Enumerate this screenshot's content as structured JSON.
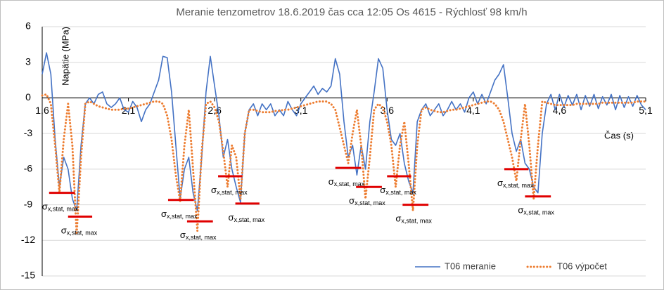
{
  "chart_data": {
    "type": "line",
    "title": "Meranie tenzometrov  18.6.2019 čas cca 12:05 Os 4615 - Rýchlosť 98 km/h",
    "y_label": "Napätie (MPa)",
    "x_label": "Čas (s)",
    "xlim": [
      1.6,
      5.1
    ],
    "ylim": [
      -15,
      6
    ],
    "xticks": [
      {
        "value": 1.6,
        "label": "1,6"
      },
      {
        "value": 2.1,
        "label": "2,1"
      },
      {
        "value": 2.6,
        "label": "2,6"
      },
      {
        "value": 3.1,
        "label": "3,1"
      },
      {
        "value": 3.6,
        "label": "3,6"
      },
      {
        "value": 4.1,
        "label": "4,1"
      },
      {
        "value": 4.6,
        "label": "4,6"
      },
      {
        "value": 5.1,
        "label": "5,1"
      }
    ],
    "yticks": [
      -15,
      -12,
      -9,
      -6,
      -3,
      0,
      3,
      6
    ],
    "grid": true,
    "legend": "bottom-right",
    "x": [
      1.6,
      1.625,
      1.65,
      1.675,
      1.7,
      1.725,
      1.75,
      1.775,
      1.8,
      1.825,
      1.85,
      1.875,
      1.9,
      1.925,
      1.95,
      1.975,
      2.0,
      2.025,
      2.05,
      2.075,
      2.1,
      2.125,
      2.15,
      2.175,
      2.2,
      2.225,
      2.25,
      2.275,
      2.3,
      2.325,
      2.35,
      2.375,
      2.4,
      2.425,
      2.45,
      2.475,
      2.5,
      2.525,
      2.55,
      2.575,
      2.6,
      2.625,
      2.65,
      2.675,
      2.7,
      2.725,
      2.75,
      2.775,
      2.8,
      2.825,
      2.85,
      2.875,
      2.9,
      2.925,
      2.95,
      2.975,
      3.0,
      3.025,
      3.05,
      3.075,
      3.1,
      3.125,
      3.15,
      3.175,
      3.2,
      3.225,
      3.25,
      3.275,
      3.3,
      3.325,
      3.35,
      3.375,
      3.4,
      3.425,
      3.45,
      3.475,
      3.5,
      3.525,
      3.55,
      3.575,
      3.6,
      3.625,
      3.65,
      3.675,
      3.7,
      3.725,
      3.75,
      3.775,
      3.8,
      3.825,
      3.85,
      3.875,
      3.9,
      3.925,
      3.95,
      3.975,
      4.0,
      4.025,
      4.05,
      4.075,
      4.1,
      4.125,
      4.15,
      4.175,
      4.2,
      4.225,
      4.25,
      4.275,
      4.3,
      4.325,
      4.35,
      4.375,
      4.4,
      4.425,
      4.45,
      4.475,
      4.5,
      4.525,
      4.55,
      4.575,
      4.6,
      4.625,
      4.65,
      4.675,
      4.7,
      4.725,
      4.75,
      4.775,
      4.8,
      4.825,
      4.85,
      4.875,
      4.9,
      4.925,
      4.95,
      4.975,
      5.0,
      5.025,
      5.05,
      5.075,
      5.1
    ],
    "series": [
      {
        "name": "T06 meranie",
        "color": "#4472c4",
        "style": "solid",
        "values": [
          2.0,
          3.8,
          2.0,
          -3.5,
          -7.5,
          -5.0,
          -6.0,
          -8.5,
          -9.5,
          -4.0,
          -0.5,
          0.0,
          -0.5,
          0.3,
          0.5,
          -0.5,
          -0.8,
          -0.5,
          0.0,
          -1.0,
          -1.2,
          -0.3,
          -0.8,
          -2.0,
          -1.0,
          -0.5,
          0.5,
          1.5,
          3.5,
          3.4,
          0.5,
          -4.0,
          -8.5,
          -6.0,
          -5.0,
          -8.0,
          -9.5,
          -5.0,
          0.5,
          3.5,
          1.0,
          -1.5,
          -5.0,
          -3.5,
          -6.0,
          -7.5,
          -8.8,
          -3.0,
          -1.0,
          -0.5,
          -1.5,
          -0.5,
          -1.0,
          -0.5,
          -1.5,
          -1.0,
          -1.5,
          -0.3,
          -1.0,
          -1.5,
          -0.5,
          0.0,
          0.5,
          1.0,
          0.3,
          0.8,
          0.5,
          1.0,
          3.3,
          2.0,
          -2.0,
          -5.0,
          -4.0,
          -6.5,
          -4.0,
          -6.0,
          -2.0,
          0.5,
          3.3,
          2.5,
          -1.0,
          -3.5,
          -4.0,
          -3.0,
          -5.5,
          -7.0,
          -8.0,
          -2.0,
          -1.0,
          -0.5,
          -1.5,
          -1.0,
          -0.5,
          -1.5,
          -1.0,
          -0.3,
          -1.0,
          -0.5,
          -1.2,
          0.0,
          0.5,
          -0.5,
          0.3,
          -0.5,
          0.5,
          1.5,
          2.0,
          2.8,
          0.0,
          -3.0,
          -4.5,
          -3.5,
          -5.5,
          -6.0,
          -7.5,
          -8.0,
          -3.0,
          -0.5,
          0.3,
          -1.0,
          0.3,
          -0.8,
          0.2,
          -0.6,
          0.3,
          -1.0,
          0.2,
          -0.7,
          0.3,
          -0.9,
          0.1,
          -0.6,
          0.3,
          -1.0,
          0.2,
          -0.8,
          0.1,
          -0.7,
          0.2,
          -0.6,
          -1.0
        ]
      },
      {
        "name": "T06 výpočet",
        "color": "#ed7d31",
        "style": "dotted",
        "values": [
          0.2,
          0.3,
          -0.5,
          -4.0,
          -8.0,
          -3.5,
          -0.5,
          -4.0,
          -11.5,
          -5.0,
          -0.5,
          -0.3,
          -0.5,
          -0.7,
          -0.8,
          -0.9,
          -1.0,
          -1.0,
          -1.0,
          -0.9,
          -0.9,
          -0.8,
          -0.7,
          -0.6,
          -0.5,
          -0.4,
          -0.3,
          -0.3,
          -0.5,
          -1.5,
          -3.5,
          -6.5,
          -8.7,
          -4.0,
          -1.0,
          -6.0,
          -11.2,
          -4.5,
          -0.5,
          -0.3,
          -0.8,
          -2.0,
          -4.5,
          -7.5,
          -4.0,
          -5.0,
          -8.5,
          -3.0,
          -1.0,
          -1.0,
          -1.1,
          -1.2,
          -1.2,
          -1.2,
          -1.1,
          -1.1,
          -1.0,
          -1.0,
          -0.9,
          -0.8,
          -0.7,
          -0.6,
          -0.5,
          -0.4,
          -0.3,
          -0.3,
          -0.3,
          -0.5,
          -1.0,
          -2.5,
          -4.0,
          -5.5,
          -3.0,
          -1.0,
          -4.0,
          -8.5,
          -5.0,
          -1.0,
          -0.5,
          -0.8,
          -2.0,
          -4.0,
          -7.5,
          -4.0,
          -2.0,
          -5.5,
          -9.5,
          -4.0,
          -1.0,
          -0.8,
          -1.0,
          -1.1,
          -1.2,
          -1.2,
          -1.1,
          -1.0,
          -1.0,
          -0.9,
          -0.8,
          -0.7,
          -0.6,
          -0.5,
          -0.4,
          -0.3,
          -0.3,
          -0.5,
          -1.0,
          -2.0,
          -3.5,
          -5.0,
          -7.0,
          -3.5,
          -0.5,
          -4.0,
          -8.5,
          -4.0,
          -0.3,
          -0.4,
          -0.5,
          -0.6,
          -0.6,
          -0.6,
          -0.6,
          -0.6,
          -0.5,
          -0.5,
          -0.5,
          -0.5,
          -0.5,
          -0.5,
          -0.4,
          -0.4,
          -0.4,
          -0.4,
          -0.4,
          -0.4,
          -0.4,
          -0.4,
          -0.3,
          -0.3,
          -0.3
        ]
      }
    ],
    "reference_symbol": "σ",
    "reference_subscript": "x,stat, max",
    "reference_color": "#e00000",
    "reference_levels": [
      {
        "x": [
          1.64,
          1.79
        ],
        "y": -8.0
      },
      {
        "x": [
          1.75,
          1.89
        ],
        "y": -10.0
      },
      {
        "x": [
          2.33,
          2.48
        ],
        "y": -8.6
      },
      {
        "x": [
          2.44,
          2.59
        ],
        "y": -10.4
      },
      {
        "x": [
          2.62,
          2.76
        ],
        "y": -6.6
      },
      {
        "x": [
          2.72,
          2.86
        ],
        "y": -8.9
      },
      {
        "x": [
          3.3,
          3.45
        ],
        "y": -5.9
      },
      {
        "x": [
          3.42,
          3.57
        ],
        "y": -7.5
      },
      {
        "x": [
          3.6,
          3.74
        ],
        "y": -6.6
      },
      {
        "x": [
          3.69,
          3.84
        ],
        "y": -9.0
      },
      {
        "x": [
          4.28,
          4.42
        ],
        "y": -6.0
      },
      {
        "x": [
          4.4,
          4.55
        ],
        "y": -8.3
      }
    ]
  }
}
